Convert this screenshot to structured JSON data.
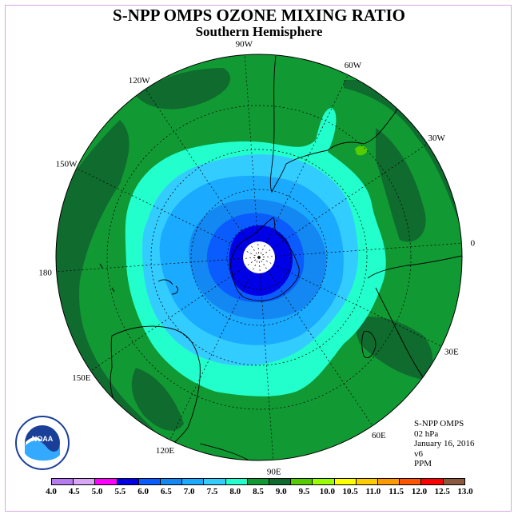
{
  "title": "S-NPP OMPS OZONE MIXING RATIO",
  "subtitle": "Southern Hemisphere",
  "info": {
    "instrument": "S-NPP OMPS",
    "level": "02 hPa",
    "date": "January 16, 2016",
    "version": "v6",
    "units": "PPM"
  },
  "longitude_labels": [
    {
      "text": "90W",
      "lon": -90
    },
    {
      "text": "60W",
      "lon": -60
    },
    {
      "text": "30W",
      "lon": -30
    },
    {
      "text": "0",
      "lon": 0
    },
    {
      "text": "30E",
      "lon": 30
    },
    {
      "text": "60E",
      "lon": 60
    },
    {
      "text": "90E",
      "lon": 90
    },
    {
      "text": "120E",
      "lon": 120
    },
    {
      "text": "150E",
      "lon": 150
    },
    {
      "text": "180",
      "lon": 180
    },
    {
      "text": "150W",
      "lon": -150
    },
    {
      "text": "120W",
      "lon": -120
    }
  ],
  "legend": {
    "ticks": [
      "4.0",
      "4.5",
      "5.0",
      "5.5",
      "6.0",
      "6.5",
      "7.0",
      "7.5",
      "8.0",
      "8.5",
      "9.0",
      "9.5",
      "10.0",
      "10.5",
      "11.0",
      "11.5",
      "12.0",
      "12.5",
      "13.0"
    ],
    "colors": [
      "#b57bef",
      "#d9a6f5",
      "#ff00ff",
      "#0000e6",
      "#0a5cff",
      "#1388f2",
      "#1aaaff",
      "#33ccff",
      "#22ffcc",
      "#119933",
      "#0f6b2e",
      "#55cc00",
      "#99ff00",
      "#ffff00",
      "#ffcc00",
      "#ff9900",
      "#ff5500",
      "#ff0000",
      "#8b5a3c"
    ]
  },
  "colors": {
    "ozone_8_5": "#119933",
    "ozone_9_0": "#0f6b2e",
    "ozone_8_0": "#22ffcc",
    "ozone_7_5": "#33ccff",
    "ozone_7_0": "#1aaaff",
    "ozone_6_5": "#1388f2",
    "ozone_6_0": "#0a5cff",
    "ozone_5_5": "#0000e6",
    "ozone_9_5": "#55cc00"
  },
  "logo": "noaa-logo"
}
